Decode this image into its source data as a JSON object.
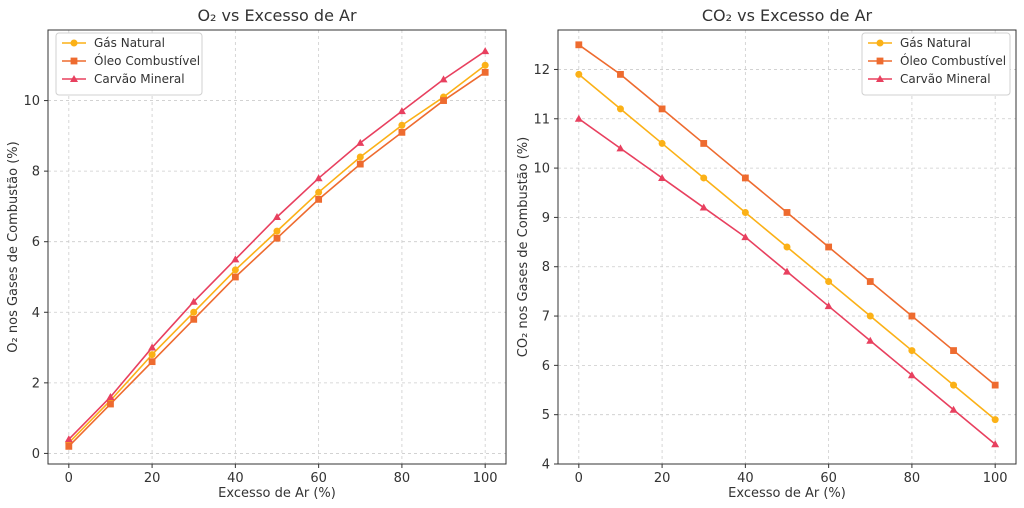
{
  "chart_data": [
    {
      "type": "line",
      "title": "O₂ vs Excesso de Ar",
      "xlabel": "Excesso de Ar (%)",
      "ylabel": "O₂ nos Gases de Combustão (%)",
      "x": [
        0,
        10,
        20,
        30,
        40,
        50,
        60,
        70,
        80,
        90,
        100
      ],
      "xlim": [
        -5,
        105
      ],
      "ylim": [
        -0.3,
        12
      ],
      "xticks": [
        0,
        20,
        40,
        60,
        80,
        100
      ],
      "yticks": [
        0,
        2,
        4,
        6,
        8,
        10
      ],
      "grid": true,
      "legend_position": "top-left",
      "series": [
        {
          "name": "Gás Natural",
          "color": "#FBB117",
          "marker": "circle",
          "values": [
            0.3,
            1.5,
            2.8,
            4.0,
            5.2,
            6.3,
            7.4,
            8.4,
            9.3,
            10.1,
            11.0
          ]
        },
        {
          "name": "Óleo Combustível",
          "color": "#EE6B2F",
          "marker": "square",
          "values": [
            0.2,
            1.4,
            2.6,
            3.8,
            5.0,
            6.1,
            7.2,
            8.2,
            9.1,
            10.0,
            10.8
          ]
        },
        {
          "name": "Carvão Mineral",
          "color": "#E8405F",
          "marker": "triangle",
          "values": [
            0.4,
            1.6,
            3.0,
            4.3,
            5.5,
            6.7,
            7.8,
            8.8,
            9.7,
            10.6,
            11.4
          ]
        }
      ]
    },
    {
      "type": "line",
      "title": "CO₂ vs Excesso de Ar",
      "xlabel": "Excesso de Ar (%)",
      "ylabel": "CO₂ nos Gases de Combustão (%)",
      "x": [
        0,
        10,
        20,
        30,
        40,
        50,
        60,
        70,
        80,
        90,
        100
      ],
      "xlim": [
        -5,
        105
      ],
      "ylim": [
        4,
        12.8
      ],
      "xticks": [
        0,
        20,
        40,
        60,
        80,
        100
      ],
      "yticks": [
        4,
        5,
        6,
        7,
        8,
        9,
        10,
        11,
        12
      ],
      "grid": true,
      "legend_position": "top-right",
      "series": [
        {
          "name": "Gás Natural",
          "color": "#FBB117",
          "marker": "circle",
          "values": [
            11.9,
            11.2,
            10.5,
            9.8,
            9.1,
            8.4,
            7.7,
            7.0,
            6.3,
            5.6,
            4.9
          ]
        },
        {
          "name": "Óleo Combustível",
          "color": "#EE6B2F",
          "marker": "square",
          "values": [
            12.5,
            11.9,
            11.2,
            10.5,
            9.8,
            9.1,
            8.4,
            7.7,
            7.0,
            6.3,
            5.6
          ]
        },
        {
          "name": "Carvão Mineral",
          "color": "#E8405F",
          "marker": "triangle",
          "values": [
            11.0,
            10.4,
            9.8,
            9.2,
            8.6,
            7.9,
            7.2,
            6.5,
            5.8,
            5.1,
            4.4
          ]
        }
      ]
    }
  ]
}
